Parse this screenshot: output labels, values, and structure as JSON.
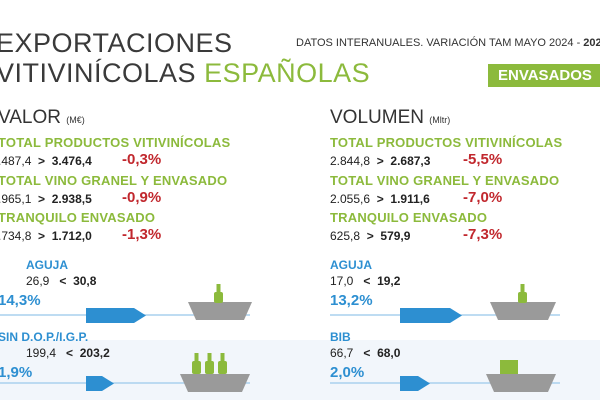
{
  "header": {
    "title_line1": "EXPORTACIONES",
    "title_line2_part1": "VITIVINÍCOLAS",
    "title_line2_part2": "ESPAÑOLAS",
    "subtitle_prefix": "DATOS INTERANUALES. VARIACIÓN TAM MAYO 2024 - ",
    "subtitle_bold": "202",
    "badge": "ENVASADOS"
  },
  "valor": {
    "heading": "VALOR",
    "unit": "(M€)",
    "rows": [
      {
        "label": "TOTAL PRODUCTOS VITIVINÍCOLAS",
        "from": ".487,4",
        "cmp": ">",
        "to": "3.476,4",
        "pct": "-0,3%"
      },
      {
        "label": "TOTAL VINO GRANEL Y ENVASADO",
        "from": ".965,1",
        "cmp": ">",
        "to": "2.938,5",
        "pct": "-0,9%"
      },
      {
        "label": "TRANQUILO ENVASADO",
        "from": ".734,8",
        "cmp": ">",
        "to": "1.712,0",
        "pct": "-1,3%"
      }
    ],
    "items": [
      {
        "label": "AGUJA",
        "from": "26,9",
        "cmp": "<",
        "to": "30,8",
        "pct": "14,3%"
      },
      {
        "label": "SIN D.O.P./I.G.P.",
        "from": "199,4",
        "cmp": "<",
        "to": "203,2",
        "pct": "1,9%"
      }
    ]
  },
  "volumen": {
    "heading": "VOLUMEN",
    "unit": "(Mltr)",
    "rows": [
      {
        "label": "TOTAL PRODUCTOS VITIVINÍCOLAS",
        "from": "2.844,8",
        "cmp": ">",
        "to": "2.687,3",
        "pct": "-5,5%"
      },
      {
        "label": "TOTAL VINO GRANEL Y ENVASADO",
        "from": "2.055,6",
        "cmp": ">",
        "to": "1.911,6",
        "pct": "-7,0%"
      },
      {
        "label": "TRANQUILO ENVASADO",
        "from": "625,8",
        "cmp": ">",
        "to": "579,9",
        "pct": "-7,3%"
      }
    ],
    "items": [
      {
        "label": "AGUJA",
        "from": "17,0",
        "cmp": "<",
        "to": "19,2",
        "pct": "13,2%"
      },
      {
        "label": "BIB",
        "from": "66,7",
        "cmp": "<",
        "to": "68,0",
        "pct": "2,0%"
      }
    ]
  },
  "colors": {
    "green": "#8cba3c",
    "red": "#c1272d",
    "blue": "#2d8fd1",
    "ship": "#9a9a9a"
  }
}
